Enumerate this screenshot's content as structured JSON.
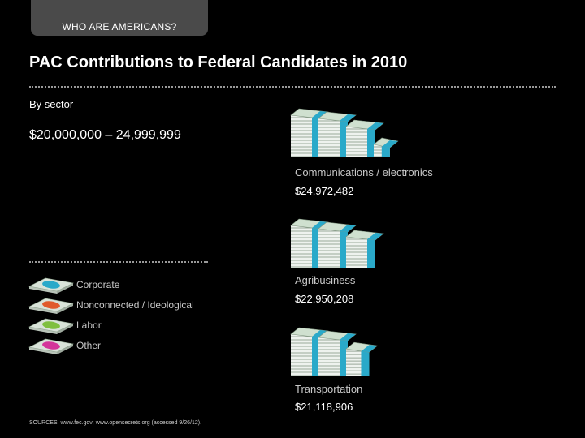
{
  "header": {
    "tab_label": "WHO ARE AMERICANS?"
  },
  "chart_data": {
    "type": "bar",
    "title": "PAC Contributions to Federal Candidates in 2010",
    "subtitle": "By sector",
    "range_label": "$20,000,000 – 24,999,999",
    "categories": [
      "Communications / electronics",
      "Agribusiness",
      "Transportation"
    ],
    "values": [
      24972482,
      22950208,
      21118906
    ],
    "value_labels": [
      "$24,972,482",
      "$22,950,208",
      "$21,118,906"
    ],
    "legend": [
      {
        "label": "Corporate",
        "color": "#2aa9c9"
      },
      {
        "label": "Nonconnected / Ideological",
        "color": "#e05a2b"
      },
      {
        "label": "Labor",
        "color": "#7fbf3f"
      },
      {
        "label": "Other",
        "color": "#d4359a"
      }
    ],
    "bill_color": "#d9e3d9",
    "bill_edge": "#8fa58f"
  },
  "footer": {
    "sources": "SOURCES: www.fec.gov; www.opensecrets.org (accessed 9/26/12)."
  }
}
